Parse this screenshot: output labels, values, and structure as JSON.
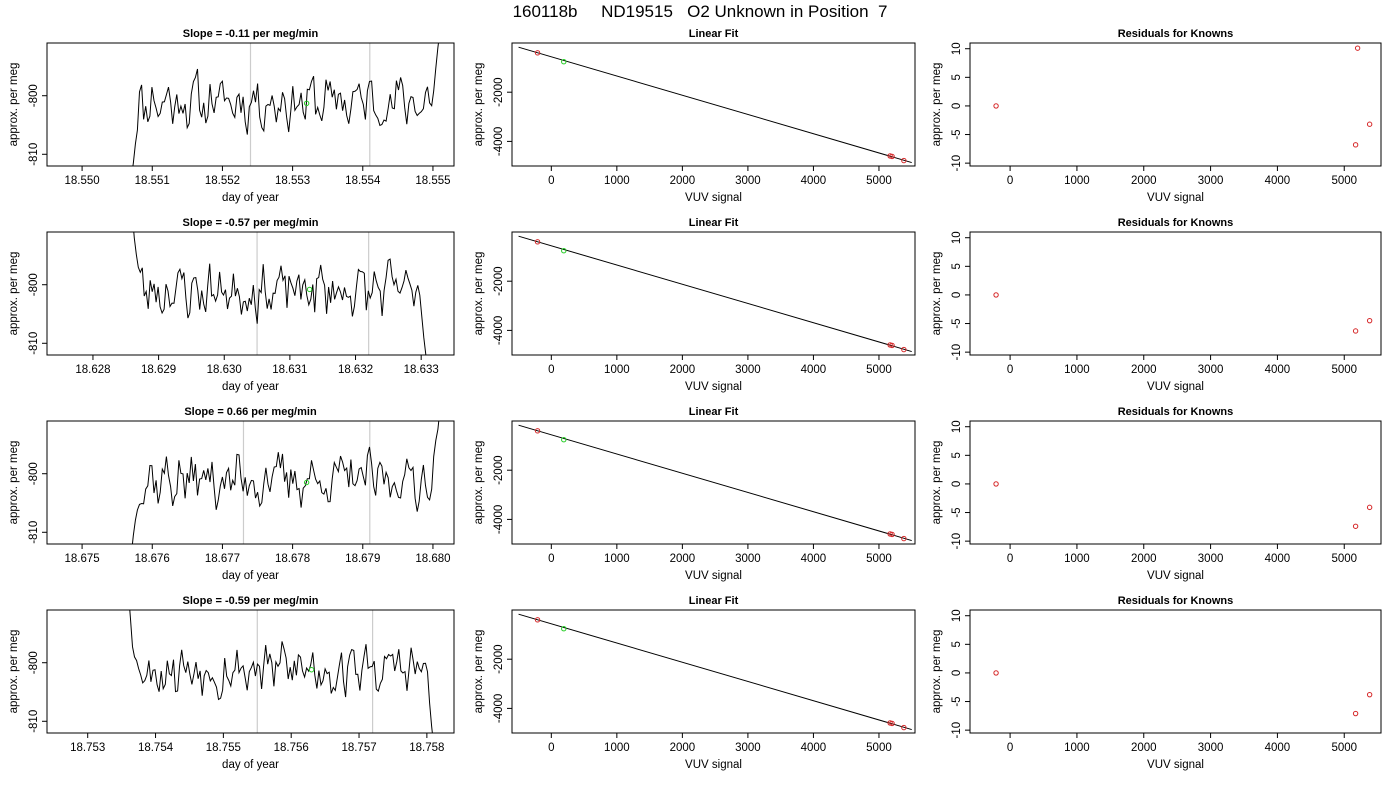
{
  "figure": {
    "title": "160118b     ND19515   O2 Unknown in Position  7",
    "colors": {
      "trace": "#000000",
      "guide": "#cccccc",
      "known": "#d62728",
      "unknown": "#22cc22"
    }
  },
  "chart_data": [
    {
      "type": "line",
      "panel": "time-series-row-1",
      "title": "Slope =  -0.11  per meg/min",
      "xlabel": "day of year",
      "ylabel": "approx. per meg",
      "xlim": [
        18.5495,
        18.5553
      ],
      "ylim": [
        -812,
        -791
      ],
      "x_ticks": [
        "18.550",
        "18.551",
        "18.552",
        "18.553",
        "18.554",
        "18.555"
      ],
      "x_tick_values": [
        18.55,
        18.551,
        18.552,
        18.553,
        18.554,
        18.555
      ],
      "y_ticks": [
        "-800",
        "-810"
      ],
      "y_tick_values": [
        -800,
        -810
      ],
      "trace_start": 18.5507,
      "trace_end": 18.5551,
      "trace_seed": 11,
      "trace_start_value": -814,
      "trace_end_value": -789,
      "vertical_lines": [
        18.5524,
        18.5541
      ],
      "unknown_point": {
        "x": 18.5532,
        "y": -801.3
      }
    },
    {
      "type": "scatter",
      "panel": "linear-fit-row-1",
      "title": "Linear Fit",
      "xlabel": "VUV signal",
      "ylabel": "approx. per meg",
      "xlim": [
        -600,
        5550
      ],
      "ylim": [
        -5000,
        0
      ],
      "x_ticks": [
        "0",
        "1000",
        "2000",
        "3000",
        "4000",
        "5000"
      ],
      "x_tick_values": [
        0,
        1000,
        2000,
        3000,
        4000,
        5000
      ],
      "y_ticks": [
        "-2000",
        "-4000"
      ],
      "y_tick_values": [
        -2000,
        -4000
      ],
      "fit_line": [
        [
          -500,
          -170
        ],
        [
          5500,
          -4860
        ]
      ],
      "known_points": [
        [
          -210,
          -400
        ],
        [
          5170,
          -4590
        ],
        [
          5200,
          -4610
        ],
        [
          5380,
          -4780
        ]
      ],
      "unknown_point": [
        190,
        -760
      ]
    },
    {
      "type": "scatter",
      "panel": "residuals-row-1",
      "title": "Residuals for Knowns",
      "xlabel": "VUV signal",
      "ylabel": "approx. per meg",
      "xlim": [
        -600,
        5550
      ],
      "ylim": [
        -10.5,
        11
      ],
      "x_ticks": [
        "0",
        "1000",
        "2000",
        "3000",
        "4000",
        "5000"
      ],
      "x_tick_values": [
        0,
        1000,
        2000,
        3000,
        4000,
        5000
      ],
      "y_ticks": [
        "10",
        "5",
        "0",
        "-5",
        "-10"
      ],
      "y_tick_values": [
        10,
        5,
        0,
        -5,
        -10
      ],
      "points": [
        [
          -210,
          0
        ],
        [
          5170,
          -6.8
        ],
        [
          5200,
          10.1
        ],
        [
          5380,
          -3.2
        ]
      ]
    },
    {
      "type": "line",
      "panel": "time-series-row-2",
      "title": "Slope =  -0.57  per meg/min",
      "xlabel": "day of year",
      "ylabel": "approx. per meg",
      "xlim": [
        18.6273,
        18.6335
      ],
      "ylim": [
        -812,
        -791
      ],
      "x_ticks": [
        "18.628",
        "18.629",
        "18.630",
        "18.631",
        "18.632",
        "18.633"
      ],
      "x_tick_values": [
        18.628,
        18.629,
        18.63,
        18.631,
        18.632,
        18.633
      ],
      "y_ticks": [
        "-800",
        "-810"
      ],
      "y_tick_values": [
        -800,
        -810
      ],
      "trace_start": 18.6286,
      "trace_end": 18.6331,
      "trace_seed": 23,
      "trace_start_value": -788,
      "trace_end_value": -814,
      "vertical_lines": [
        18.6305,
        18.6322
      ],
      "unknown_point": {
        "x": 18.6313,
        "y": -800.8
      }
    },
    {
      "type": "scatter",
      "panel": "linear-fit-row-2",
      "title": "Linear Fit",
      "xlabel": "VUV signal",
      "ylabel": "approx. per meg",
      "xlim": [
        -600,
        5550
      ],
      "ylim": [
        -5000,
        0
      ],
      "x_ticks": [
        "0",
        "1000",
        "2000",
        "3000",
        "4000",
        "5000"
      ],
      "x_tick_values": [
        0,
        1000,
        2000,
        3000,
        4000,
        5000
      ],
      "y_ticks": [
        "-2000",
        "-4000"
      ],
      "y_tick_values": [
        -2000,
        -4000
      ],
      "fit_line": [
        [
          -500,
          -170
        ],
        [
          5500,
          -4860
        ]
      ],
      "known_points": [
        [
          -210,
          -400
        ],
        [
          5170,
          -4590
        ],
        [
          5200,
          -4610
        ],
        [
          5380,
          -4780
        ]
      ],
      "unknown_point": [
        190,
        -760
      ]
    },
    {
      "type": "scatter",
      "panel": "residuals-row-2",
      "title": "Residuals for Knowns",
      "xlabel": "VUV signal",
      "ylabel": "approx. per meg",
      "xlim": [
        -600,
        5550
      ],
      "ylim": [
        -10.5,
        11
      ],
      "x_ticks": [
        "0",
        "1000",
        "2000",
        "3000",
        "4000",
        "5000"
      ],
      "x_tick_values": [
        0,
        1000,
        2000,
        3000,
        4000,
        5000
      ],
      "y_ticks": [
        "10",
        "5",
        "0",
        "-5",
        "-10"
      ],
      "y_tick_values": [
        10,
        5,
        0,
        -5,
        -10
      ],
      "points": [
        [
          -210,
          0
        ],
        [
          5170,
          -6.3
        ],
        [
          5380,
          -4.5
        ]
      ]
    },
    {
      "type": "line",
      "panel": "time-series-row-3",
      "title": "Slope =  0.66  per meg/min",
      "xlabel": "day of year",
      "ylabel": "approx. per meg",
      "xlim": [
        18.6745,
        18.6803
      ],
      "ylim": [
        -812,
        -791
      ],
      "x_ticks": [
        "18.675",
        "18.676",
        "18.677",
        "18.678",
        "18.679",
        "18.680"
      ],
      "x_tick_values": [
        18.675,
        18.676,
        18.677,
        18.678,
        18.679,
        18.68
      ],
      "y_ticks": [
        "-800",
        "-810"
      ],
      "y_tick_values": [
        -800,
        -810
      ],
      "trace_start": 18.6757,
      "trace_end": 18.6801,
      "trace_seed": 37,
      "trace_start_value": -814,
      "trace_end_value": -789,
      "vertical_lines": [
        18.6773,
        18.6791
      ],
      "unknown_point": {
        "x": 18.6782,
        "y": -801.5
      }
    },
    {
      "type": "scatter",
      "panel": "linear-fit-row-3",
      "title": "Linear Fit",
      "xlabel": "VUV signal",
      "ylabel": "approx. per meg",
      "xlim": [
        -600,
        5550
      ],
      "ylim": [
        -5000,
        0
      ],
      "x_ticks": [
        "0",
        "1000",
        "2000",
        "3000",
        "4000",
        "5000"
      ],
      "x_tick_values": [
        0,
        1000,
        2000,
        3000,
        4000,
        5000
      ],
      "y_ticks": [
        "-2000",
        "-4000"
      ],
      "y_tick_values": [
        -2000,
        -4000
      ],
      "fit_line": [
        [
          -500,
          -170
        ],
        [
          5500,
          -4860
        ]
      ],
      "known_points": [
        [
          -210,
          -400
        ],
        [
          5170,
          -4590
        ],
        [
          5200,
          -4610
        ],
        [
          5380,
          -4780
        ]
      ],
      "unknown_point": [
        190,
        -760
      ]
    },
    {
      "type": "scatter",
      "panel": "residuals-row-3",
      "title": "Residuals for Knowns",
      "xlabel": "VUV signal",
      "ylabel": "approx. per meg",
      "xlim": [
        -600,
        5550
      ],
      "ylim": [
        -10.5,
        11
      ],
      "x_ticks": [
        "0",
        "1000",
        "2000",
        "3000",
        "4000",
        "5000"
      ],
      "x_tick_values": [
        0,
        1000,
        2000,
        3000,
        4000,
        5000
      ],
      "y_ticks": [
        "10",
        "5",
        "0",
        "-5",
        "-10"
      ],
      "y_tick_values": [
        10,
        5,
        0,
        -5,
        -10
      ],
      "points": [
        [
          -210,
          0
        ],
        [
          5170,
          -7.4
        ],
        [
          5380,
          -4.1
        ]
      ]
    },
    {
      "type": "line",
      "panel": "time-series-row-4",
      "title": "Slope =  -0.59  per meg/min",
      "xlabel": "day of year",
      "ylabel": "approx. per meg",
      "xlim": [
        18.7524,
        18.7584
      ],
      "ylim": [
        -812,
        -791
      ],
      "x_ticks": [
        "18.753",
        "18.754",
        "18.755",
        "18.756",
        "18.757",
        "18.758"
      ],
      "x_tick_values": [
        18.753,
        18.754,
        18.755,
        18.756,
        18.757,
        18.758
      ],
      "y_ticks": [
        "-800",
        "-810"
      ],
      "y_tick_values": [
        -800,
        -810
      ],
      "trace_start": 18.7536,
      "trace_end": 18.7581,
      "trace_seed": 53,
      "trace_start_value": -788,
      "trace_end_value": -814,
      "vertical_lines": [
        18.7555,
        18.7572
      ],
      "unknown_point": {
        "x": 18.7563,
        "y": -801.2
      }
    },
    {
      "type": "scatter",
      "panel": "linear-fit-row-4",
      "title": "Linear Fit",
      "xlabel": "VUV signal",
      "ylabel": "approx. per meg",
      "xlim": [
        -600,
        5550
      ],
      "ylim": [
        -5000,
        0
      ],
      "x_ticks": [
        "0",
        "1000",
        "2000",
        "3000",
        "4000",
        "5000"
      ],
      "x_tick_values": [
        0,
        1000,
        2000,
        3000,
        4000,
        5000
      ],
      "y_ticks": [
        "-2000",
        "-4000"
      ],
      "y_tick_values": [
        -2000,
        -4000
      ],
      "fit_line": [
        [
          -500,
          -170
        ],
        [
          5500,
          -4860
        ]
      ],
      "known_points": [
        [
          -210,
          -400
        ],
        [
          5170,
          -4590
        ],
        [
          5200,
          -4610
        ],
        [
          5380,
          -4780
        ]
      ],
      "unknown_point": [
        190,
        -760
      ]
    },
    {
      "type": "scatter",
      "panel": "residuals-row-4",
      "title": "Residuals for Knowns",
      "xlabel": "VUV signal",
      "ylabel": "approx. per meg",
      "xlim": [
        -600,
        5550
      ],
      "ylim": [
        -10.5,
        11
      ],
      "x_ticks": [
        "0",
        "1000",
        "2000",
        "3000",
        "4000",
        "5000"
      ],
      "x_tick_values": [
        0,
        1000,
        2000,
        3000,
        4000,
        5000
      ],
      "y_ticks": [
        "10",
        "5",
        "0",
        "-5",
        "-10"
      ],
      "y_tick_values": [
        10,
        5,
        0,
        -5,
        -10
      ],
      "points": [
        [
          -210,
          0
        ],
        [
          5170,
          -7.1
        ],
        [
          5380,
          -3.8
        ]
      ]
    }
  ]
}
